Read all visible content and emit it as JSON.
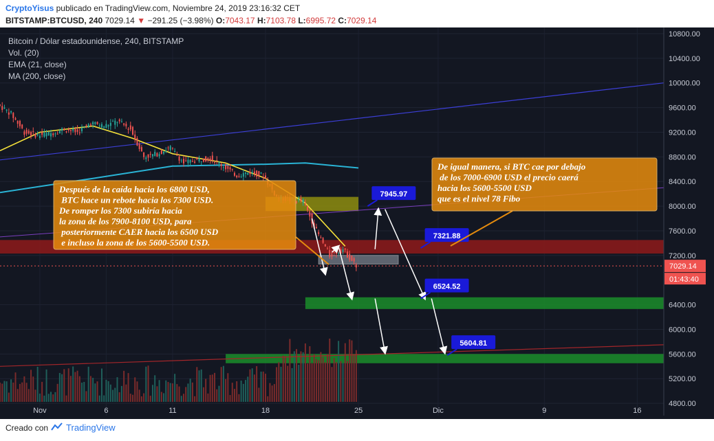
{
  "header": {
    "author": "CryptoYisus",
    "published_text": "publicado en TradingView.com, Noviembre 24, 2019 23:16:32 CET",
    "symbol": "BITSTAMP:BTCUSD, 240",
    "last_price": "7029.14",
    "change": "−291.25 (−3.98%)",
    "open_label": "O:",
    "open": "7043.17",
    "high_label": "H:",
    "high": "7103.78",
    "low_label": "L:",
    "low": "6995.72",
    "close_label": "C:",
    "close": "7029.14"
  },
  "legend": {
    "title": "Bitcoin / Dólar estadounidense, 240, BITSTAMP",
    "vol": "Vol. (20)",
    "ema": "EMA (21, close)",
    "ma": "MA (200, close)"
  },
  "footer": {
    "created": "Creado con",
    "brand": "TradingView"
  },
  "colors": {
    "background": "#131722",
    "candle_up": "#26a69a",
    "candle_down": "#ef5350",
    "ema": "#f5e13a",
    "ma": "#2ab4d6",
    "trend_blue": "#3c3fd8",
    "trend_red": "#a3262a",
    "zone_red": "#8b1a1a",
    "zone_green": "#1a8a2a",
    "zone_olive": "#8a8a10",
    "annotation_fill": "#e58b0e",
    "label_blue": "#1a1ad8"
  },
  "chart_data": {
    "type": "candlestick",
    "y_ticks": [
      "10800.00",
      "10400.00",
      "10000.00",
      "9600.00",
      "9200.00",
      "8800.00",
      "8400.00",
      "8000.00",
      "7600.00",
      "7200.00",
      "6400.00",
      "6000.00",
      "5600.00",
      "5200.00",
      "4800.00"
    ],
    "x_ticks": [
      "Nov",
      "6",
      "11",
      "18",
      "25",
      "Dic",
      "9",
      "16"
    ],
    "ylim": [
      4600,
      10900
    ],
    "xlim": [
      "2019-10-29",
      "2019-12-18"
    ],
    "last_price_tag": "7029.14",
    "countdown_tag": "01:43:40",
    "closes": [
      {
        "date": "2019-10-29",
        "close": 9500
      },
      {
        "date": "2019-10-30",
        "close": 9200
      },
      {
        "date": "2019-10-31",
        "close": 9150
      },
      {
        "date": "2019-11-01",
        "close": 9180
      },
      {
        "date": "2019-11-02",
        "close": 9250
      },
      {
        "date": "2019-11-03",
        "close": 9200
      },
      {
        "date": "2019-11-04",
        "close": 9350
      },
      {
        "date": "2019-11-05",
        "close": 9300
      },
      {
        "date": "2019-11-06",
        "close": 9380
      },
      {
        "date": "2019-11-07",
        "close": 9250
      },
      {
        "date": "2019-11-08",
        "close": 8800
      },
      {
        "date": "2019-11-09",
        "close": 8850
      },
      {
        "date": "2019-11-10",
        "close": 8950
      },
      {
        "date": "2019-11-11",
        "close": 8700
      },
      {
        "date": "2019-11-12",
        "close": 8750
      },
      {
        "date": "2019-11-13",
        "close": 8780
      },
      {
        "date": "2019-11-14",
        "close": 8650
      },
      {
        "date": "2019-11-15",
        "close": 8500
      },
      {
        "date": "2019-11-16",
        "close": 8550
      },
      {
        "date": "2019-11-17",
        "close": 8500
      },
      {
        "date": "2019-11-18",
        "close": 8150
      },
      {
        "date": "2019-11-19",
        "close": 8100
      },
      {
        "date": "2019-11-20",
        "close": 8080
      },
      {
        "date": "2019-11-21",
        "close": 7600
      },
      {
        "date": "2019-11-22",
        "close": 7200
      },
      {
        "date": "2019-11-23",
        "close": 7300
      },
      {
        "date": "2019-11-24",
        "close": 7029
      }
    ],
    "ema_line": [
      {
        "date": "2019-10-29",
        "y": 8900
      },
      {
        "date": "2019-11-01",
        "y": 9200
      },
      {
        "date": "2019-11-05",
        "y": 9300
      },
      {
        "date": "2019-11-08",
        "y": 9100
      },
      {
        "date": "2019-11-11",
        "y": 8850
      },
      {
        "date": "2019-11-15",
        "y": 8700
      },
      {
        "date": "2019-11-18",
        "y": 8450
      },
      {
        "date": "2019-11-21",
        "y": 8050
      },
      {
        "date": "2019-11-24",
        "y": 7350
      }
    ],
    "ma_line": [
      {
        "date": "2019-10-29",
        "y": 8220
      },
      {
        "date": "2019-11-05",
        "y": 8450
      },
      {
        "date": "2019-11-11",
        "y": 8650
      },
      {
        "date": "2019-11-18",
        "y": 8680
      },
      {
        "date": "2019-11-21",
        "y": 8700
      },
      {
        "date": "2019-11-25",
        "y": 8620
      }
    ],
    "trend_blue": [
      {
        "date": "2019-10-29",
        "y": 8750
      },
      {
        "date": "2019-12-18",
        "y": 10000
      }
    ],
    "trend_red": [
      {
        "date": "2019-10-29",
        "y": 5400
      },
      {
        "date": "2019-12-18",
        "y": 5750
      }
    ],
    "trend_purple": [
      {
        "date": "2019-10-29",
        "y": 7500
      },
      {
        "date": "2019-12-18",
        "y": 8300
      }
    ],
    "zones": [
      {
        "color": "red",
        "from": "2019-10-29",
        "to": "2019-12-18",
        "top": 7450,
        "bottom": 7230
      },
      {
        "color": "olive",
        "from": "2019-11-18",
        "to": "2019-11-25",
        "top": 8150,
        "bottom": 7920
      },
      {
        "color": "green",
        "from": "2019-11-21",
        "to": "2019-12-18",
        "top": 6520,
        "bottom": 6330
      },
      {
        "color": "green",
        "from": "2019-11-15",
        "to": "2019-12-18",
        "top": 5600,
        "bottom": 5450
      },
      {
        "color": "grey",
        "from": "2019-11-22",
        "to": "2019-11-28",
        "top": 7200,
        "bottom": 7060
      }
    ],
    "price_labels": [
      {
        "date": "2019-11-26",
        "y": 8200,
        "text": "7945.97"
      },
      {
        "date": "2019-11-30",
        "y": 7520,
        "text": "7321.88"
      },
      {
        "date": "2019-11-30",
        "y": 6700,
        "text": "6524.52"
      },
      {
        "date": "2019-12-02",
        "y": 5780,
        "text": "5604.81"
      }
    ],
    "annotations": [
      {
        "text": "Después de la caída hacia los 6800 USD,\n  BTC hace un rebote hacia los 7300 USD.\nDe romper los 7300 subiría hacia\nla zona de los 7900-8100 USD, para\n posteriormente CAER hacia  los 6500 USD\n e incluso la zona de los 5600-5500 USD."
      },
      {
        "text": "De igual manera, si BTC cae por debajo\n de los 7000-6900 USD el precio caerá\nhacia los 5600-5500 USD\nque es el nivel 78 Fibo"
      }
    ]
  }
}
